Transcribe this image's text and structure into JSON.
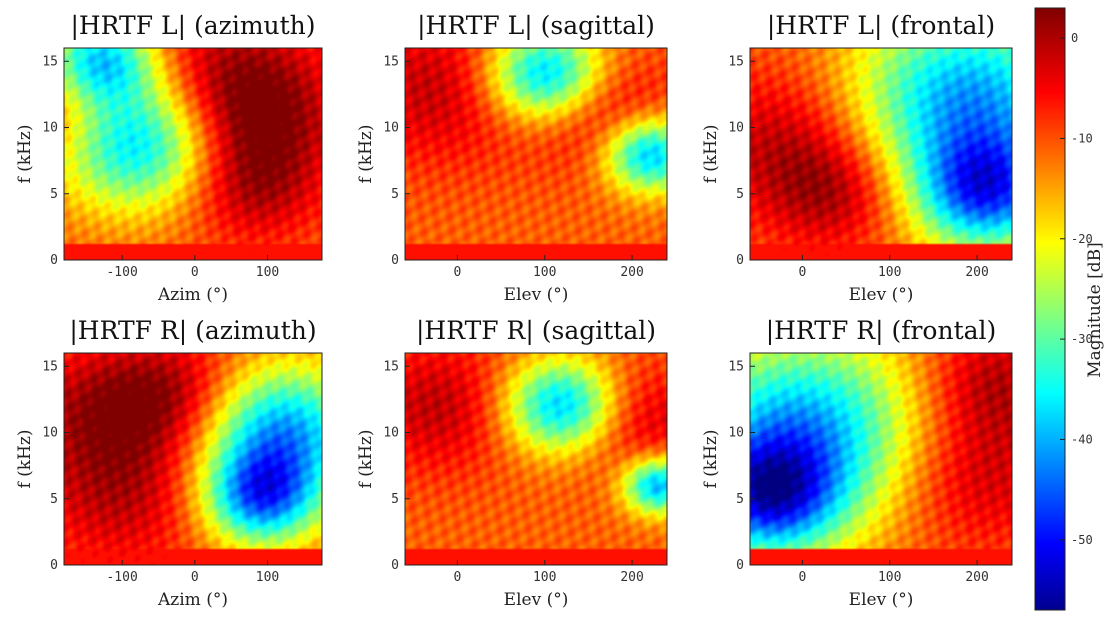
{
  "chart_data": [
    {
      "type": "heatmap",
      "title": "|HRTF L| (azimuth)",
      "xlabel": "Azim (°)",
      "ylabel": "f (kHz)",
      "xlim": [
        -180,
        175
      ],
      "ylim": [
        0,
        16
      ],
      "xticks": [
        -100,
        0,
        100
      ],
      "yticks": [
        0,
        5,
        10,
        15
      ],
      "hot": [
        {
          "x": 25,
          "y": 13.5,
          "r": 4.5
        },
        {
          "x": 90,
          "y": 11,
          "r": 3.5
        },
        {
          "x": 80,
          "y": 5.5,
          "r": 3
        },
        {
          "x": -170,
          "y": 12,
          "r": 3
        }
      ],
      "cold": [
        {
          "x": -80,
          "y": 9,
          "r": 3.5
        },
        {
          "x": -130,
          "y": 15,
          "r": 2.5
        }
      ]
    },
    {
      "type": "heatmap",
      "title": "|HRTF L| (sagittal)",
      "xlabel": "Elev (°)",
      "ylabel": "f (kHz)",
      "xlim": [
        -60,
        240
      ],
      "ylim": [
        0,
        16
      ],
      "xticks": [
        0,
        100,
        200
      ],
      "yticks": [
        0,
        5,
        10,
        15
      ],
      "hot": [
        {
          "x": -20,
          "y": 13,
          "r": 4
        },
        {
          "x": 170,
          "y": 11,
          "r": 3
        }
      ],
      "cold": [
        {
          "x": 100,
          "y": 14,
          "r": 2.5
        },
        {
          "x": 220,
          "y": 8,
          "r": 2
        }
      ]
    },
    {
      "type": "heatmap",
      "title": "|HRTF L| (frontal)",
      "xlabel": "Elev (°)",
      "ylabel": "f (kHz)",
      "xlim": [
        -60,
        240
      ],
      "ylim": [
        0,
        16
      ],
      "xticks": [
        0,
        100,
        200
      ],
      "yticks": [
        0,
        5,
        10,
        15
      ],
      "hot": [
        {
          "x": -20,
          "y": 9,
          "r": 4
        },
        {
          "x": 40,
          "y": 5,
          "r": 3
        }
      ],
      "cold": [
        {
          "x": 190,
          "y": 12,
          "r": 5
        },
        {
          "x": 210,
          "y": 5,
          "r": 3
        }
      ]
    },
    {
      "type": "heatmap",
      "title": "|HRTF R| (azimuth)",
      "xlabel": "Azim (°)",
      "ylabel": "f (kHz)",
      "xlim": [
        -180,
        175
      ],
      "ylim": [
        0,
        16
      ],
      "xticks": [
        -100,
        0,
        100
      ],
      "yticks": [
        0,
        5,
        10,
        15
      ],
      "hot": [
        {
          "x": -100,
          "y": 5.5,
          "r": 4
        },
        {
          "x": -130,
          "y": 12,
          "r": 3.5
        },
        {
          "x": -20,
          "y": 13,
          "r": 3
        }
      ],
      "cold": [
        {
          "x": 120,
          "y": 10,
          "r": 3.5
        },
        {
          "x": 90,
          "y": 5,
          "r": 2.5
        }
      ]
    },
    {
      "type": "heatmap",
      "title": "|HRTF R| (sagittal)",
      "xlabel": "Elev (°)",
      "ylabel": "f (kHz)",
      "xlim": [
        -60,
        240
      ],
      "ylim": [
        0,
        16
      ],
      "xticks": [
        0,
        100,
        200
      ],
      "yticks": [
        0,
        5,
        10,
        15
      ],
      "hot": [
        {
          "x": -20,
          "y": 12,
          "r": 3.5
        },
        {
          "x": 200,
          "y": 11,
          "r": 3
        }
      ],
      "cold": [
        {
          "x": 120,
          "y": 12,
          "r": 2.5
        },
        {
          "x": 230,
          "y": 6,
          "r": 1.5
        }
      ]
    },
    {
      "type": "heatmap",
      "title": "|HRTF R| (frontal)",
      "xlabel": "Elev (°)",
      "ylabel": "f (kHz)",
      "xlim": [
        -60,
        240
      ],
      "ylim": [
        0,
        16
      ],
      "xticks": [
        0,
        100,
        200
      ],
      "yticks": [
        0,
        5,
        10,
        15
      ],
      "hot": [
        {
          "x": 200,
          "y": 7,
          "r": 4
        },
        {
          "x": 220,
          "y": 14,
          "r": 3
        }
      ],
      "cold": [
        {
          "x": 0,
          "y": 10,
          "r": 5
        },
        {
          "x": -40,
          "y": 5,
          "r": 3
        }
      ]
    }
  ],
  "colorbar": {
    "label": "Magnitude [dB]",
    "min": -57,
    "max": 3,
    "ticks": [
      0,
      -10,
      -20,
      -30,
      -40,
      -50
    ],
    "colormap": "jet"
  }
}
